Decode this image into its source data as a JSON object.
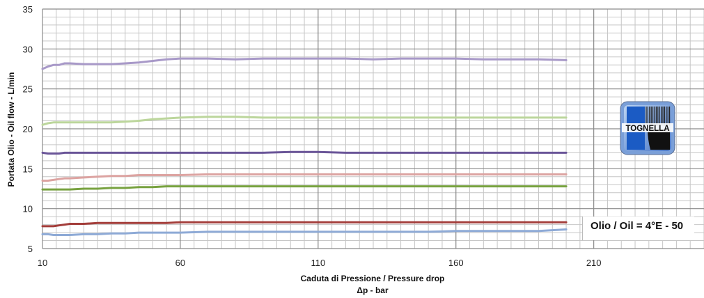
{
  "chart_data": {
    "type": "line",
    "title": "",
    "xlabel": "Caduta di Pressione / Pressure drop",
    "xlabel2": "Δp - bar",
    "ylabel": "Portata Olio - Oil flow - L/min",
    "xlim": [
      10,
      250
    ],
    "ylim": [
      5,
      35
    ],
    "xticks": [
      10,
      60,
      110,
      160,
      210
    ],
    "yticks": [
      5,
      10,
      15,
      20,
      25,
      30,
      35
    ],
    "x_minor_step": 5,
    "y_minor_step": 1,
    "grid": true,
    "annotation": "Olio / Oil = 4°E - 50",
    "series": [
      {
        "color": "#a899c8",
        "x": [
          10,
          12,
          14,
          16,
          18,
          20,
          25,
          30,
          35,
          40,
          45,
          50,
          55,
          60,
          70,
          80,
          90,
          100,
          110,
          120,
          130,
          140,
          150,
          160,
          170,
          180,
          190,
          200
        ],
        "values": [
          27.5,
          27.8,
          28.0,
          28.0,
          28.2,
          28.2,
          28.1,
          28.1,
          28.1,
          28.2,
          28.3,
          28.5,
          28.7,
          28.8,
          28.8,
          28.7,
          28.8,
          28.8,
          28.8,
          28.8,
          28.7,
          28.8,
          28.8,
          28.8,
          28.7,
          28.7,
          28.7,
          28.6
        ]
      },
      {
        "color": "#bcd69c",
        "x": [
          10,
          12,
          14,
          16,
          18,
          20,
          25,
          30,
          35,
          40,
          45,
          50,
          55,
          60,
          70,
          80,
          90,
          100,
          110,
          120,
          130,
          140,
          150,
          160,
          170,
          180,
          190,
          200
        ],
        "values": [
          20.5,
          20.7,
          20.8,
          20.8,
          20.8,
          20.8,
          20.8,
          20.8,
          20.8,
          20.9,
          21.0,
          21.2,
          21.3,
          21.4,
          21.5,
          21.5,
          21.4,
          21.4,
          21.4,
          21.4,
          21.4,
          21.4,
          21.4,
          21.4,
          21.4,
          21.4,
          21.4,
          21.4
        ]
      },
      {
        "color": "#6a5598",
        "x": [
          10,
          12,
          14,
          16,
          18,
          20,
          25,
          30,
          35,
          40,
          45,
          50,
          55,
          60,
          70,
          80,
          90,
          100,
          110,
          120,
          130,
          140,
          150,
          160,
          170,
          180,
          190,
          200
        ],
        "values": [
          17.0,
          16.9,
          16.9,
          16.9,
          17.0,
          17.0,
          17.0,
          17.0,
          17.0,
          17.0,
          17.0,
          17.0,
          17.0,
          17.0,
          17.0,
          17.0,
          17.0,
          17.1,
          17.1,
          17.0,
          17.0,
          17.0,
          17.0,
          17.0,
          17.0,
          17.0,
          17.0,
          17.0
        ]
      },
      {
        "color": "#dca3a1",
        "x": [
          10,
          12,
          14,
          16,
          18,
          20,
          25,
          30,
          35,
          40,
          45,
          50,
          55,
          60,
          70,
          80,
          90,
          100,
          110,
          120,
          130,
          140,
          150,
          160,
          170,
          180,
          190,
          200
        ],
        "values": [
          13.5,
          13.5,
          13.6,
          13.7,
          13.8,
          13.8,
          13.9,
          14.0,
          14.1,
          14.1,
          14.2,
          14.2,
          14.2,
          14.2,
          14.3,
          14.3,
          14.3,
          14.3,
          14.3,
          14.3,
          14.3,
          14.3,
          14.3,
          14.3,
          14.3,
          14.3,
          14.3,
          14.3
        ]
      },
      {
        "color": "#78a240",
        "x": [
          10,
          12,
          14,
          16,
          18,
          20,
          25,
          30,
          35,
          40,
          45,
          50,
          55,
          60,
          70,
          80,
          90,
          100,
          110,
          120,
          130,
          140,
          150,
          160,
          170,
          180,
          190,
          200
        ],
        "values": [
          12.4,
          12.4,
          12.4,
          12.4,
          12.4,
          12.4,
          12.5,
          12.5,
          12.6,
          12.6,
          12.7,
          12.7,
          12.8,
          12.8,
          12.8,
          12.8,
          12.8,
          12.8,
          12.8,
          12.8,
          12.8,
          12.8,
          12.8,
          12.8,
          12.8,
          12.8,
          12.8,
          12.8
        ]
      },
      {
        "color": "#a33d3a",
        "x": [
          10,
          12,
          14,
          16,
          18,
          20,
          25,
          30,
          35,
          40,
          45,
          50,
          55,
          60,
          70,
          80,
          90,
          100,
          110,
          120,
          130,
          140,
          150,
          160,
          170,
          180,
          190,
          200
        ],
        "values": [
          7.8,
          7.8,
          7.8,
          7.9,
          8.0,
          8.1,
          8.1,
          8.2,
          8.2,
          8.2,
          8.2,
          8.2,
          8.2,
          8.3,
          8.3,
          8.3,
          8.3,
          8.3,
          8.3,
          8.3,
          8.3,
          8.3,
          8.3,
          8.3,
          8.3,
          8.3,
          8.3,
          8.3
        ]
      },
      {
        "color": "#8eaad6",
        "x": [
          10,
          12,
          14,
          16,
          18,
          20,
          25,
          30,
          35,
          40,
          45,
          50,
          55,
          60,
          70,
          80,
          90,
          100,
          110,
          120,
          130,
          140,
          150,
          160,
          170,
          180,
          190,
          200
        ],
        "values": [
          6.8,
          6.8,
          6.7,
          6.7,
          6.7,
          6.7,
          6.8,
          6.8,
          6.9,
          6.9,
          7.0,
          7.0,
          7.0,
          7.0,
          7.1,
          7.1,
          7.1,
          7.1,
          7.1,
          7.1,
          7.1,
          7.1,
          7.1,
          7.2,
          7.2,
          7.2,
          7.2,
          7.4
        ]
      }
    ]
  },
  "logo": {
    "text": "TOGNELLA"
  }
}
